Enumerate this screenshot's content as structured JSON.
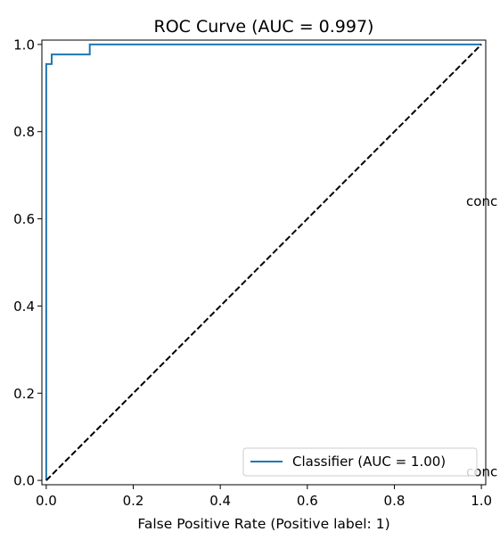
{
  "chart_data": {
    "type": "line",
    "title": "ROC Curve (AUC = 0.997)",
    "xlabel": "False Positive Rate (Positive label: 1)",
    "ylabel": "",
    "xlim": [
      -0.01,
      1.01
    ],
    "ylim": [
      -0.01,
      1.01
    ],
    "x_ticks": [
      0.0,
      0.2,
      0.4,
      0.6,
      0.8,
      1.0
    ],
    "y_ticks": [
      0.0,
      0.2,
      0.4,
      0.6,
      0.8,
      1.0
    ],
    "x_tick_labels": [
      "0.0",
      "0.2",
      "0.4",
      "0.6",
      "0.8",
      "1.0"
    ],
    "y_tick_labels": [
      "0.0",
      "0.2",
      "0.4",
      "0.6",
      "0.8",
      "1.0"
    ],
    "grid": false,
    "legend": {
      "placement": "lower-right"
    },
    "series": [
      {
        "name": "Classifier (AUC = 1.00)",
        "color": "#1f77b4",
        "style": "solid",
        "x": [
          0.0,
          0.0,
          0.0,
          0.0125,
          0.0125,
          0.1,
          0.1,
          1.0
        ],
        "y": [
          0.0,
          0.0,
          0.955,
          0.955,
          0.977,
          0.977,
          1.0,
          1.0
        ]
      },
      {
        "color": "#000000",
        "style": "dashed",
        "x": [
          0.0,
          1.0
        ],
        "y": [
          0.0,
          1.0
        ]
      }
    ],
    "annotations": [
      {
        "text": "conc",
        "x": 0.965,
        "y": 0.64
      },
      {
        "text": "conc",
        "x": 0.965,
        "y": 0.02
      }
    ]
  }
}
